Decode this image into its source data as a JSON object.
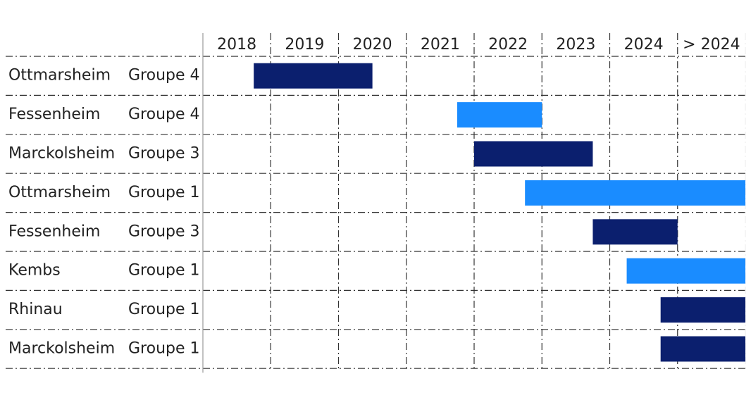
{
  "chart_data": {
    "type": "gantt",
    "xlim": [
      2018,
      2026
    ],
    "xticks": [
      2018,
      2019,
      2020,
      2021,
      2022,
      2023,
      2024,
      2025,
      2026
    ],
    "column_labels": [
      "2018",
      "2019",
      "2020",
      "2021",
      "2022",
      "2023",
      "2024",
      "> 2024"
    ],
    "grid": true,
    "tasks": [
      {
        "site": "Ottmarsheim",
        "group": "Groupe 4",
        "start": 2018.75,
        "end": 2020.5,
        "color": "#0b1f6e"
      },
      {
        "site": "Fessenheim",
        "group": "Groupe 4",
        "start": 2021.75,
        "end": 2023,
        "color": "#1a8cff"
      },
      {
        "site": "Marckolsheim",
        "group": "Groupe 3",
        "start": 2022,
        "end": 2023.75,
        "color": "#0b1f6e"
      },
      {
        "site": "Ottmarsheim",
        "group": "Groupe 1",
        "start": 2022.75,
        "end": 2026,
        "color": "#1a8cff"
      },
      {
        "site": "Fessenheim",
        "group": "Groupe 3",
        "start": 2023.75,
        "end": 2025,
        "color": "#0b1f6e"
      },
      {
        "site": "Kembs",
        "group": "Groupe 1",
        "start": 2024.25,
        "end": 2026,
        "color": "#1a8cff"
      },
      {
        "site": "Rhinau",
        "group": "Groupe 1",
        "start": 2024.75,
        "end": 2026,
        "color": "#0b1f6e"
      },
      {
        "site": "Marckolsheim",
        "group": "Groupe 1",
        "start": 2024.75,
        "end": 2026,
        "color": "#0b1f6e"
      }
    ]
  }
}
